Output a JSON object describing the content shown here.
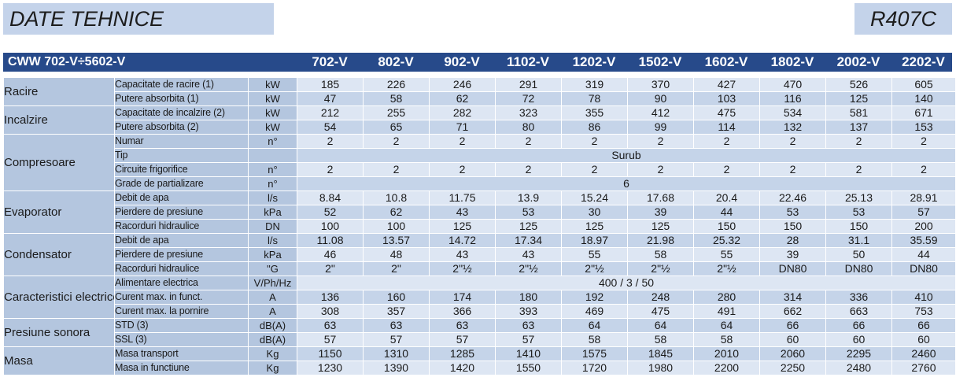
{
  "header": {
    "title": "DATE TEHNICE",
    "refrigerant": "R407C",
    "model_range": "CWW 702-V÷5602-V",
    "models": [
      "702-V",
      "802-V",
      "902-V",
      "1102-V",
      "1202-V",
      "1502-V",
      "1602-V",
      "1802-V",
      "2002-V",
      "2202-V"
    ]
  },
  "table": {
    "groups": [
      {
        "category": "Racire",
        "rows": [
          {
            "param": "Capacitate de racire (1)",
            "unit": "kW",
            "values": [
              "185",
              "226",
              "246",
              "291",
              "319",
              "370",
              "427",
              "470",
              "526",
              "605"
            ]
          },
          {
            "param": "Putere absorbita (1)",
            "unit": "kW",
            "values": [
              "47",
              "58",
              "62",
              "72",
              "78",
              "90",
              "103",
              "116",
              "125",
              "140"
            ]
          }
        ]
      },
      {
        "category": "Incalzire",
        "rows": [
          {
            "param": "Capacitate de incalzire (2)",
            "unit": "kW",
            "values": [
              "212",
              "255",
              "282",
              "323",
              "355",
              "412",
              "475",
              "534",
              "581",
              "671"
            ]
          },
          {
            "param": "Putere absorbita (2)",
            "unit": "kW",
            "values": [
              "54",
              "65",
              "71",
              "80",
              "86",
              "99",
              "114",
              "132",
              "137",
              "153"
            ]
          }
        ]
      },
      {
        "category": "Compresoare",
        "rows": [
          {
            "param": "Numar",
            "unit": "n°",
            "values": [
              "2",
              "2",
              "2",
              "2",
              "2",
              "2",
              "2",
              "2",
              "2",
              "2"
            ]
          },
          {
            "param": "Tip",
            "unit": "",
            "span": "Surub"
          },
          {
            "param": "Circuite frigorifice",
            "unit": "n°",
            "values": [
              "2",
              "2",
              "2",
              "2",
              "2",
              "2",
              "2",
              "2",
              "2",
              "2"
            ]
          },
          {
            "param": "Grade de partializare",
            "unit": "n°",
            "span": "6"
          }
        ]
      },
      {
        "category": "Evaporator",
        "rows": [
          {
            "param": "Debit de apa",
            "unit": "l/s",
            "values": [
              "8.84",
              "10.8",
              "11.75",
              "13.9",
              "15.24",
              "17.68",
              "20.4",
              "22.46",
              "25.13",
              "28.91"
            ]
          },
          {
            "param": "Pierdere de presiune",
            "unit": "kPa",
            "values": [
              "52",
              "62",
              "43",
              "53",
              "30",
              "39",
              "44",
              "53",
              "53",
              "57"
            ]
          },
          {
            "param": "Racorduri hidraulice",
            "unit": "DN",
            "values": [
              "100",
              "100",
              "125",
              "125",
              "125",
              "125",
              "150",
              "150",
              "150",
              "200"
            ]
          }
        ]
      },
      {
        "category": "Condensator",
        "rows": [
          {
            "param": "Debit de apa",
            "unit": "l/s",
            "values": [
              "11.08",
              "13.57",
              "14.72",
              "17.34",
              "18.97",
              "21.98",
              "25.32",
              "28",
              "31.1",
              "35.59"
            ]
          },
          {
            "param": "Pierdere de presiune",
            "unit": "kPa",
            "values": [
              "46",
              "48",
              "43",
              "43",
              "55",
              "58",
              "55",
              "39",
              "50",
              "44"
            ]
          },
          {
            "param": "Racorduri hidraulice",
            "unit": "\"G",
            "values": [
              "2\"",
              "2\"",
              "2\"½",
              "2\"½",
              "2\"½",
              "2\"½",
              "2\"½",
              "DN80",
              "DN80",
              "DN80"
            ]
          }
        ]
      },
      {
        "category": "Caracteristici electrice",
        "rows": [
          {
            "param": "Alimentare electrica",
            "unit": "V/Ph/Hz",
            "span": "400 / 3 / 50"
          },
          {
            "param": "Curent max. in funct.",
            "unit": "A",
            "values": [
              "136",
              "160",
              "174",
              "180",
              "192",
              "248",
              "280",
              "314",
              "336",
              "410"
            ]
          },
          {
            "param": "Curent max. la pornire",
            "unit": "A",
            "values": [
              "308",
              "357",
              "366",
              "393",
              "469",
              "475",
              "491",
              "662",
              "663",
              "753"
            ]
          }
        ]
      },
      {
        "category": "Presiune sonora",
        "rows": [
          {
            "param": "STD (3)",
            "unit": "dB(A)",
            "values": [
              "63",
              "63",
              "63",
              "63",
              "64",
              "64",
              "64",
              "66",
              "66",
              "66"
            ]
          },
          {
            "param": "SSL (3)",
            "unit": "dB(A)",
            "values": [
              "57",
              "57",
              "57",
              "57",
              "58",
              "58",
              "58",
              "60",
              "60",
              "60"
            ]
          }
        ]
      },
      {
        "category": "Masa",
        "rows": [
          {
            "param": "Masa transport",
            "unit": "Kg",
            "values": [
              "1150",
              "1310",
              "1285",
              "1410",
              "1575",
              "1845",
              "2010",
              "2060",
              "2295",
              "2460"
            ]
          },
          {
            "param": "Masa in functiune",
            "unit": "Kg",
            "values": [
              "1230",
              "1390",
              "1420",
              "1550",
              "1720",
              "1980",
              "2200",
              "2250",
              "2480",
              "2760"
            ]
          }
        ]
      }
    ]
  }
}
